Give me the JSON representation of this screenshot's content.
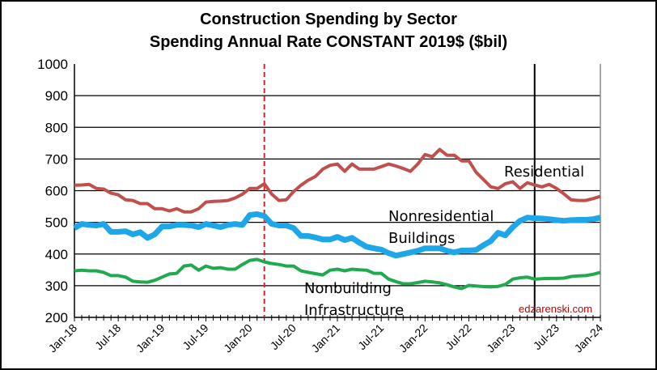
{
  "chart_data": {
    "type": "line",
    "title": [
      "Construction Spending by Sector",
      "Spending Annual Rate CONSTANT 2019$ ($bil)"
    ],
    "xlabel": "",
    "ylabel": "",
    "ylim": [
      200,
      1000
    ],
    "yticks": [
      200,
      300,
      400,
      500,
      600,
      700,
      800,
      900,
      1000
    ],
    "x_start": "Jan-18",
    "x_end": "Jan-24",
    "x_tick_labels": [
      "Jan-18",
      "Jul-18",
      "Jan-19",
      "Jul-19",
      "Jan-20",
      "Jul-20",
      "Jan-21",
      "Jul-21",
      "Jan-22",
      "Jul-22",
      "Jan-23",
      "Jul-23",
      "Jan-24"
    ],
    "grid": "horizontal",
    "frequency": "monthly",
    "series": [
      {
        "name": "Residential",
        "color": "#C0504D",
        "values": [
          617,
          618,
          620,
          607,
          605,
          592,
          587,
          571,
          569,
          559,
          559,
          543,
          543,
          536,
          543,
          533,
          533,
          543,
          564,
          566,
          567,
          569,
          577,
          589,
          607,
          607,
          622,
          589,
          569,
          571,
          597,
          617,
          633,
          645,
          668,
          680,
          684,
          661,
          684,
          668,
          668,
          668,
          676,
          684,
          678,
          670,
          661,
          684,
          714,
          707,
          730,
          712,
          712,
          694,
          694,
          658,
          635,
          612,
          607,
          622,
          628,
          607,
          625,
          618,
          612,
          620,
          607,
          590,
          571,
          569,
          569,
          575,
          582
        ]
      },
      {
        "name": "Nonresidential Buildings",
        "color": "#1EA7E8",
        "values": [
          482,
          495,
          492,
          490,
          495,
          470,
          470,
          472,
          462,
          469,
          451,
          462,
          487,
          487,
          492,
          492,
          490,
          485,
          495,
          490,
          485,
          492,
          495,
          492,
          523,
          526,
          520,
          495,
          490,
          490,
          482,
          457,
          457,
          452,
          446,
          446,
          454,
          444,
          451,
          436,
          423,
          418,
          414,
          403,
          395,
          400,
          405,
          410,
          418,
          418,
          418,
          410,
          405,
          411,
          411,
          413,
          428,
          441,
          467,
          459,
          485,
          505,
          515,
          513,
          512,
          510,
          507,
          505,
          507,
          508,
          508,
          510,
          515
        ]
      },
      {
        "name": "Nonbuilding Infrastructure",
        "color": "#1FAA4E",
        "values": [
          347,
          349,
          347,
          347,
          342,
          332,
          332,
          327,
          314,
          312,
          311,
          317,
          327,
          337,
          339,
          362,
          365,
          349,
          362,
          355,
          357,
          352,
          352,
          367,
          380,
          383,
          375,
          370,
          367,
          362,
          362,
          347,
          342,
          338,
          334,
          349,
          352,
          347,
          352,
          350,
          349,
          339,
          339,
          321,
          313,
          306,
          306,
          310,
          314,
          312,
          309,
          303,
          296,
          291,
          301,
          299,
          297,
          296,
          298,
          304,
          321,
          325,
          327,
          321,
          322,
          323,
          323,
          324,
          329,
          331,
          332,
          336,
          342
        ]
      }
    ],
    "reference_lines": [
      {
        "x": "Mar-20",
        "style": "dashed",
        "color": "#E0202A"
      },
      {
        "x": "Apr-23",
        "style": "solid",
        "color": "#000000"
      }
    ],
    "annotations": {
      "residential": "Residential",
      "nonres_1": "Nonresidential",
      "nonres_2": "Buildings",
      "nonbuilding_1": "Nonbuilding",
      "nonbuilding_2": "Infrastructure"
    },
    "watermark": "edzarenski.com",
    "watermark_color": "#C00000"
  }
}
